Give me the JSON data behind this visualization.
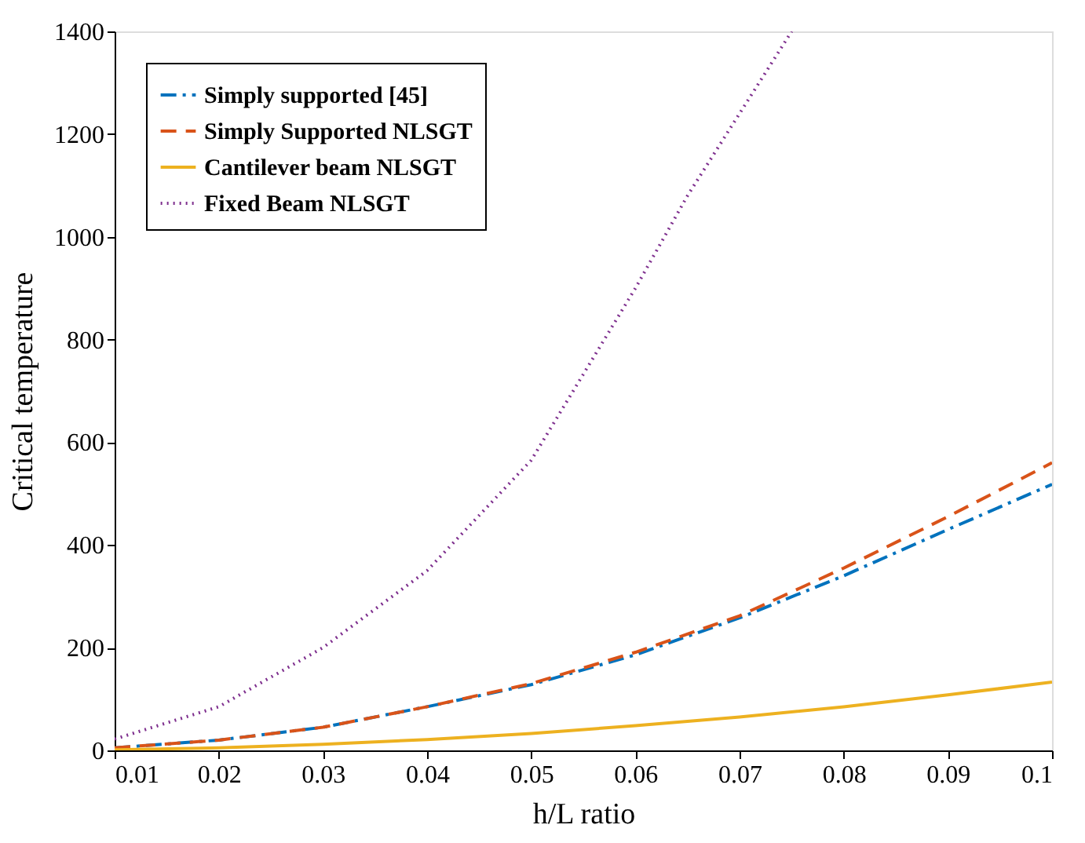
{
  "chart_data": {
    "type": "line",
    "xlabel": "h/L ratio",
    "ylabel": "Critical temperature",
    "x": [
      0.01,
      0.02,
      0.03,
      0.04,
      0.05,
      0.06,
      0.07,
      0.08,
      0.09,
      0.1
    ],
    "xlim": [
      0.01,
      0.1
    ],
    "xticks": [
      0.01,
      0.02,
      0.03,
      0.04,
      0.05,
      0.06,
      0.07,
      0.08,
      0.09,
      0.1
    ],
    "ylim": [
      0,
      1400
    ],
    "yticks": [
      0,
      200,
      400,
      600,
      800,
      1000,
      1200,
      1400
    ],
    "grid": false,
    "legend": "top left",
    "marker": "none",
    "series": [
      {
        "name": "Simply supported [45]",
        "color": "#0072bd",
        "line_style": "dashdot",
        "values": [
          5,
          20,
          45,
          85,
          128,
          186,
          258,
          340,
          430,
          518
        ]
      },
      {
        "name": "Simply Supported NLSGT",
        "color": "#d95319",
        "line_style": "dashed",
        "values": [
          5,
          20,
          45,
          85,
          130,
          191,
          262,
          355,
          455,
          560
        ]
      },
      {
        "name": "Cantilever beam NLSGT",
        "color": "#edb120",
        "line_style": "solid",
        "values": [
          1,
          5,
          12,
          21,
          33,
          48,
          65,
          85,
          108,
          133
        ]
      },
      {
        "name": "Fixed Beam NLSGT",
        "color": "#7e2f8e",
        "line_style": "dotted",
        "x": [
          0.01,
          0.02,
          0.03,
          0.04,
          0.05,
          0.06,
          0.065,
          0.07,
          0.075
        ],
        "values": [
          22,
          85,
          200,
          350,
          565,
          900,
          1080,
          1240,
          1400
        ]
      }
    ]
  }
}
